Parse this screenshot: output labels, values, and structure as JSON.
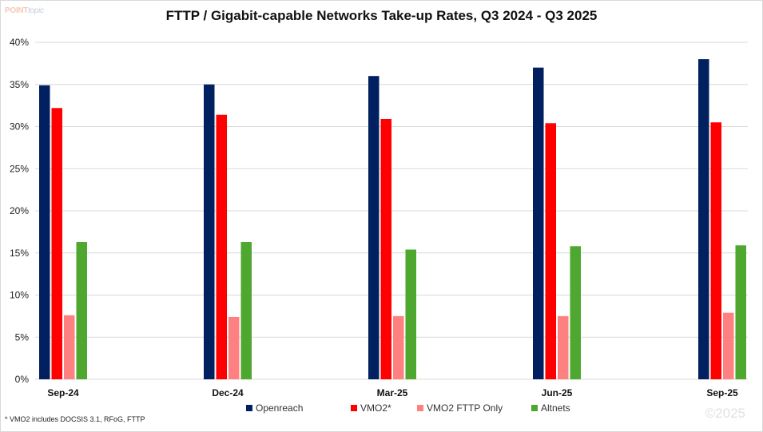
{
  "logo": {
    "part1": "POINT",
    "part2": "topic"
  },
  "chart_data": {
    "type": "bar",
    "title": "FTTP / Gigabit-capable  Networks Take-up Rates, Q3 2024 - Q3 2025",
    "xlabel": "",
    "ylabel": "",
    "ylim": [
      0,
      40
    ],
    "yticks": [
      0,
      5,
      10,
      15,
      20,
      25,
      30,
      35,
      40
    ],
    "ytick_labels": [
      "0%",
      "5%",
      "10%",
      "15%",
      "20%",
      "25%",
      "30%",
      "35%",
      "40%"
    ],
    "grid": true,
    "legend_position": "bottom",
    "categories": [
      "Sep-24",
      "Dec-24",
      "Mar-25",
      "Jun-25",
      "Sep-25"
    ],
    "series": [
      {
        "name": "Openreach",
        "color": "#002060",
        "values": [
          34.9,
          35.0,
          36.0,
          37.0,
          38.0
        ]
      },
      {
        "name": "VMO2*",
        "color": "#ff0000",
        "values": [
          32.2,
          31.4,
          30.9,
          30.4,
          30.5
        ]
      },
      {
        "name": "VMO2 FTTP Only",
        "color": "#ff8080",
        "values": [
          7.6,
          7.4,
          7.5,
          7.5,
          7.9
        ]
      },
      {
        "name": "Altnets",
        "color": "#4ea72e",
        "values": [
          16.3,
          16.3,
          15.4,
          15.8,
          15.9
        ]
      }
    ]
  },
  "footnote": "* VMO2 includes DOCSIS 3.1, RFoG, FTTP",
  "copyright": "©2025"
}
